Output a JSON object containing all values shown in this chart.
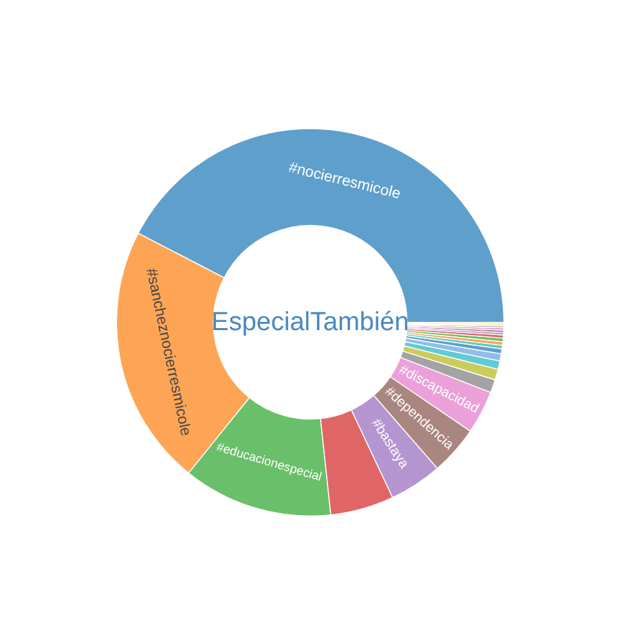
{
  "chart_data": {
    "type": "donut",
    "categories": [
      "#nocierresmicole",
      "#sancheznocierresmicole",
      "#educacionespecial",
      null,
      "#bastaya",
      "#dependencia",
      "#discapacidad",
      null,
      null,
      null,
      null,
      null,
      null,
      null,
      null,
      null,
      null,
      null,
      null,
      null,
      null,
      null
    ],
    "values": [
      42.4,
      21.8,
      12.5,
      5.3,
      4.4,
      4.1,
      3.6,
      1.1,
      0.9,
      0.7,
      0.6,
      0.4,
      0.3,
      0.3,
      0.3,
      0.25,
      0.2,
      0.2,
      0.2,
      0.15,
      0.15,
      0.15
    ],
    "colors": [
      "#5f9fcb",
      "#fea555",
      "#6abf6a",
      "#e06666",
      "#b495cf",
      "#aa8680",
      "#eaa0d8",
      "#a3a3a3",
      "#cbcc5c",
      "#5fcbd6",
      "#8fbfe6",
      "#5f9fcb",
      "#5fcbbf",
      "#fea555",
      "#6abf6a",
      "#e06666",
      "#b495cf",
      "#aa8680",
      "#eaa0d8",
      "#a3a3a3",
      "#e8e87a",
      "#f2d6b3"
    ],
    "annotations": [
      "EspecialTambién"
    ]
  }
}
